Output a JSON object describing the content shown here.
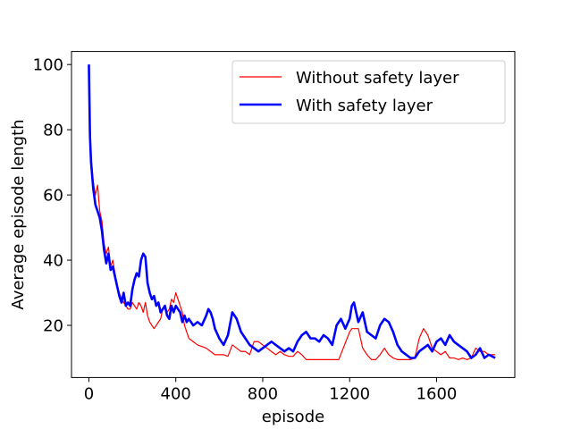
{
  "chart_data": {
    "type": "line",
    "xlabel": "episode",
    "ylabel": "Average episode length",
    "xlim": [
      -80,
      1960
    ],
    "ylim": [
      4,
      104
    ],
    "xticks": [
      0,
      400,
      800,
      1200,
      1600
    ],
    "yticks": [
      20,
      40,
      60,
      80,
      100
    ],
    "legend_position": "top-right",
    "grid": false,
    "series": [
      {
        "name": "Without safety layer",
        "color": "#ff0000",
        "x": [
          0,
          5,
          10,
          15,
          20,
          30,
          40,
          50,
          60,
          70,
          80,
          90,
          100,
          110,
          120,
          130,
          140,
          150,
          160,
          170,
          180,
          190,
          200,
          210,
          220,
          230,
          240,
          250,
          260,
          270,
          280,
          290,
          300,
          310,
          320,
          330,
          340,
          350,
          360,
          370,
          380,
          390,
          400,
          410,
          420,
          430,
          440,
          450,
          460,
          480,
          500,
          520,
          540,
          560,
          580,
          600,
          620,
          640,
          660,
          680,
          700,
          720,
          740,
          760,
          780,
          800,
          820,
          840,
          860,
          880,
          900,
          920,
          940,
          960,
          980,
          1000,
          1050,
          1100,
          1150,
          1200,
          1210,
          1220,
          1240,
          1260,
          1280,
          1300,
          1320,
          1340,
          1360,
          1380,
          1400,
          1420,
          1440,
          1460,
          1480,
          1500,
          1520,
          1540,
          1560,
          1580,
          1600,
          1620,
          1640,
          1660,
          1680,
          1700,
          1720,
          1740,
          1760,
          1780,
          1800,
          1820,
          1840,
          1870
        ],
        "values": [
          100,
          82,
          72,
          68,
          64,
          60,
          63,
          55,
          52,
          45,
          42,
          44,
          38,
          40,
          36,
          32,
          30,
          28,
          27,
          26,
          25,
          25,
          27,
          26,
          25,
          27,
          26,
          24,
          27,
          23,
          21,
          20,
          19,
          20,
          21,
          22,
          25,
          26,
          24,
          25,
          28,
          27,
          30,
          28,
          26,
          24,
          20,
          18,
          16,
          15,
          14,
          13.5,
          13,
          12,
          11,
          11,
          11,
          10.5,
          14,
          13,
          12,
          12,
          11,
          15,
          15,
          14,
          13,
          12,
          11,
          12,
          11,
          10.5,
          10.5,
          12,
          11,
          9.5,
          9.5,
          9.5,
          9.5,
          18,
          19,
          19,
          19,
          13,
          11,
          9.5,
          9.5,
          11,
          13,
          11,
          10,
          9.5,
          9.5,
          9.5,
          9.5,
          10,
          16,
          19,
          17,
          13,
          12,
          11,
          12,
          10,
          10,
          9.5,
          10,
          9.5,
          10,
          13,
          12,
          12,
          11,
          11
        ]
      },
      {
        "name": "With safety layer",
        "color": "#0000ff",
        "x": [
          0,
          5,
          10,
          15,
          20,
          30,
          40,
          50,
          60,
          70,
          80,
          90,
          100,
          110,
          120,
          130,
          140,
          150,
          160,
          170,
          180,
          190,
          200,
          210,
          220,
          230,
          240,
          250,
          260,
          270,
          280,
          290,
          300,
          310,
          320,
          330,
          340,
          350,
          360,
          370,
          380,
          390,
          400,
          410,
          420,
          430,
          440,
          450,
          460,
          480,
          500,
          520,
          540,
          550,
          560,
          570,
          580,
          600,
          620,
          640,
          660,
          680,
          700,
          720,
          740,
          760,
          780,
          800,
          820,
          840,
          860,
          880,
          900,
          920,
          940,
          960,
          980,
          1000,
          1020,
          1040,
          1060,
          1080,
          1100,
          1120,
          1140,
          1160,
          1180,
          1200,
          1210,
          1220,
          1230,
          1240,
          1260,
          1280,
          1300,
          1320,
          1340,
          1360,
          1380,
          1400,
          1420,
          1440,
          1460,
          1480,
          1500,
          1520,
          1540,
          1560,
          1580,
          1600,
          1620,
          1640,
          1660,
          1680,
          1700,
          1720,
          1740,
          1760,
          1780,
          1800,
          1820,
          1840,
          1870
        ],
        "values": [
          100,
          78,
          70,
          66,
          62,
          57,
          55,
          53,
          49,
          43,
          39,
          42,
          37,
          38,
          35,
          32,
          29,
          27,
          30,
          26,
          27,
          26,
          31,
          34,
          36,
          35,
          40,
          42,
          41,
          33,
          30,
          28,
          29,
          26,
          27,
          24,
          25,
          26,
          23,
          22,
          26,
          24,
          26,
          25,
          24,
          21,
          23,
          21,
          22,
          20,
          21,
          20,
          23,
          25,
          24,
          22,
          19,
          16,
          14,
          17,
          24,
          22,
          18,
          16,
          14,
          13,
          12,
          13,
          14,
          15,
          14,
          13,
          12,
          13,
          12,
          15,
          17,
          18,
          16,
          16,
          15,
          17,
          16,
          14,
          20,
          22,
          19,
          22,
          26,
          27,
          24,
          21,
          24,
          18,
          17,
          16,
          20,
          22,
          21,
          18,
          14,
          12,
          11,
          10,
          10,
          12,
          13,
          14,
          12,
          15,
          16,
          14,
          17,
          15,
          14,
          13,
          12,
          10,
          11,
          13,
          10,
          11,
          10
        ]
      }
    ]
  }
}
